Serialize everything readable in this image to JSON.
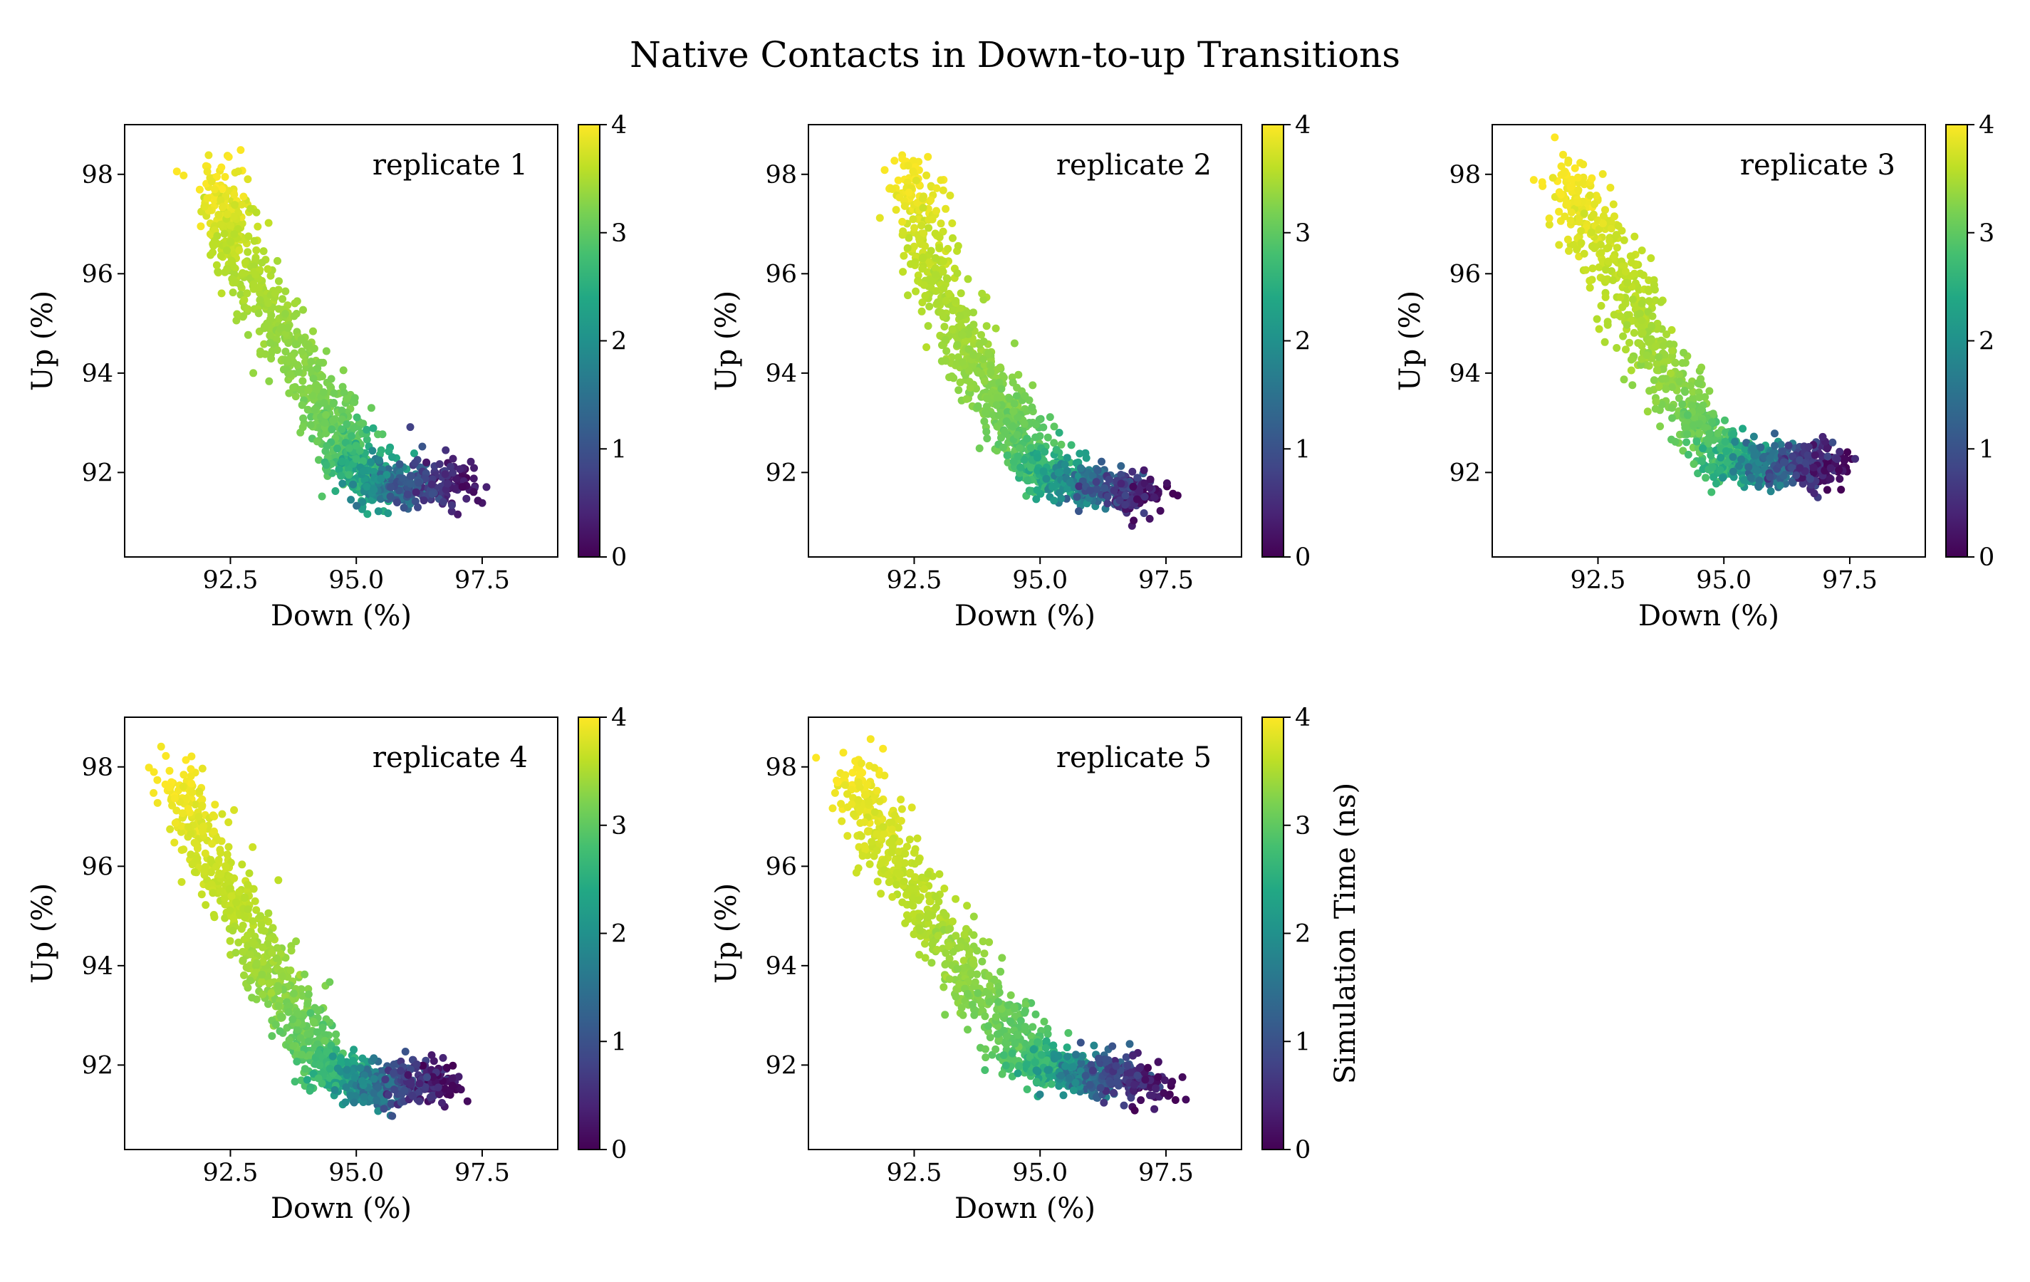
{
  "title": "Native Contacts in Down-to-up Transitions",
  "chart_data": [
    {
      "type": "scatter",
      "label": "replicate 1",
      "xlabel": "Down (%)",
      "ylabel": "Up (%)",
      "xlim": [
        90.4,
        99.0
      ],
      "ylim": [
        90.3,
        99.0
      ],
      "xticks": [
        "92.5",
        "95.0",
        "97.5"
      ],
      "yticks": [
        "92",
        "94",
        "96",
        "98"
      ],
      "color_scale": {
        "min": 0,
        "max": 4,
        "ticks": [
          "0",
          "1",
          "2",
          "3",
          "4"
        ],
        "colormap": "viridis",
        "label": ""
      },
      "trajectory": [
        {
          "down": 92.2,
          "up": 98.0,
          "time": 4.0
        },
        {
          "down": 92.6,
          "up": 96.5,
          "time": 3.6
        },
        {
          "down": 93.4,
          "up": 95.0,
          "time": 3.4
        },
        {
          "down": 94.3,
          "up": 93.4,
          "time": 3.2
        },
        {
          "down": 94.8,
          "up": 92.4,
          "time": 2.9
        },
        {
          "down": 95.3,
          "up": 91.8,
          "time": 2.2
        },
        {
          "down": 96.0,
          "up": 91.7,
          "time": 1.2
        },
        {
          "down": 97.2,
          "up": 91.9,
          "time": 0.0
        }
      ]
    },
    {
      "type": "scatter",
      "label": "replicate 2",
      "xlabel": "Down (%)",
      "ylabel": "Up (%)",
      "xlim": [
        90.4,
        99.0
      ],
      "ylim": [
        90.3,
        99.0
      ],
      "xticks": [
        "92.5",
        "95.0",
        "97.5"
      ],
      "yticks": [
        "92",
        "94",
        "96",
        "98"
      ],
      "color_scale": {
        "min": 0,
        "max": 4,
        "ticks": [
          "0",
          "1",
          "2",
          "3",
          "4"
        ],
        "colormap": "viridis",
        "label": ""
      },
      "trajectory": [
        {
          "down": 92.4,
          "up": 98.2,
          "time": 4.0
        },
        {
          "down": 92.8,
          "up": 96.2,
          "time": 3.6
        },
        {
          "down": 93.6,
          "up": 94.5,
          "time": 3.4
        },
        {
          "down": 94.3,
          "up": 93.2,
          "time": 3.2
        },
        {
          "down": 94.9,
          "up": 92.2,
          "time": 2.8
        },
        {
          "down": 95.5,
          "up": 91.8,
          "time": 2.2
        },
        {
          "down": 96.3,
          "up": 91.7,
          "time": 1.1
        },
        {
          "down": 97.2,
          "up": 91.5,
          "time": 0.0
        }
      ]
    },
    {
      "type": "scatter",
      "label": "replicate 3",
      "xlabel": "Down (%)",
      "ylabel": "Up (%)",
      "xlim": [
        90.4,
        99.0
      ],
      "ylim": [
        90.3,
        99.0
      ],
      "xticks": [
        "92.5",
        "95.0",
        "97.5"
      ],
      "yticks": [
        "92",
        "94",
        "96",
        "98"
      ],
      "color_scale": {
        "min": 0,
        "max": 4,
        "ticks": [
          "0",
          "1",
          "2",
          "3",
          "4"
        ],
        "colormap": "viridis",
        "label": ""
      },
      "trajectory": [
        {
          "down": 91.8,
          "up": 97.9,
          "time": 4.0
        },
        {
          "down": 92.6,
          "up": 96.6,
          "time": 3.7
        },
        {
          "down": 93.4,
          "up": 94.9,
          "time": 3.5
        },
        {
          "down": 94.3,
          "up": 93.2,
          "time": 3.2
        },
        {
          "down": 95.0,
          "up": 92.3,
          "time": 2.7
        },
        {
          "down": 95.7,
          "up": 92.1,
          "time": 2.0
        },
        {
          "down": 96.4,
          "up": 92.2,
          "time": 1.0
        },
        {
          "down": 97.2,
          "up": 92.2,
          "time": 0.0
        }
      ]
    },
    {
      "type": "scatter",
      "label": "replicate 4",
      "xlabel": "Down (%)",
      "ylabel": "Up (%)",
      "xlim": [
        90.4,
        99.0
      ],
      "ylim": [
        90.3,
        99.0
      ],
      "xticks": [
        "92.5",
        "95.0",
        "97.5"
      ],
      "yticks": [
        "92",
        "94",
        "96",
        "98"
      ],
      "color_scale": {
        "min": 0,
        "max": 4,
        "ticks": [
          "0",
          "1",
          "2",
          "3",
          "4"
        ],
        "colormap": "viridis",
        "label": ""
      },
      "trajectory": [
        {
          "down": 91.3,
          "up": 97.9,
          "time": 4.0
        },
        {
          "down": 92.2,
          "up": 96.0,
          "time": 3.7
        },
        {
          "down": 93.0,
          "up": 94.4,
          "time": 3.5
        },
        {
          "down": 93.8,
          "up": 93.0,
          "time": 3.2
        },
        {
          "down": 94.4,
          "up": 92.0,
          "time": 2.8
        },
        {
          "down": 95.1,
          "up": 91.6,
          "time": 2.0
        },
        {
          "down": 95.9,
          "up": 91.6,
          "time": 1.0
        },
        {
          "down": 96.8,
          "up": 91.7,
          "time": 0.0
        }
      ]
    },
    {
      "type": "scatter",
      "label": "replicate 5",
      "xlabel": "Down (%)",
      "ylabel": "Up (%)",
      "xlim": [
        90.4,
        99.0
      ],
      "ylim": [
        90.3,
        99.0
      ],
      "xticks": [
        "92.5",
        "95.0",
        "97.5"
      ],
      "yticks": [
        "92",
        "94",
        "96",
        "98"
      ],
      "color_scale": {
        "min": 0,
        "max": 4,
        "ticks": [
          "0",
          "1",
          "2",
          "3",
          "4"
        ],
        "colormap": "viridis",
        "label": "Simulation Time (ns)"
      },
      "trajectory": [
        {
          "down": 91.2,
          "up": 98.0,
          "time": 4.0
        },
        {
          "down": 92.0,
          "up": 96.3,
          "time": 3.7
        },
        {
          "down": 93.0,
          "up": 94.7,
          "time": 3.5
        },
        {
          "down": 94.0,
          "up": 93.2,
          "time": 3.2
        },
        {
          "down": 94.9,
          "up": 92.1,
          "time": 2.8
        },
        {
          "down": 95.6,
          "up": 91.8,
          "time": 2.1
        },
        {
          "down": 96.3,
          "up": 91.8,
          "time": 1.1
        },
        {
          "down": 97.4,
          "up": 91.7,
          "time": 0.0
        }
      ]
    }
  ]
}
